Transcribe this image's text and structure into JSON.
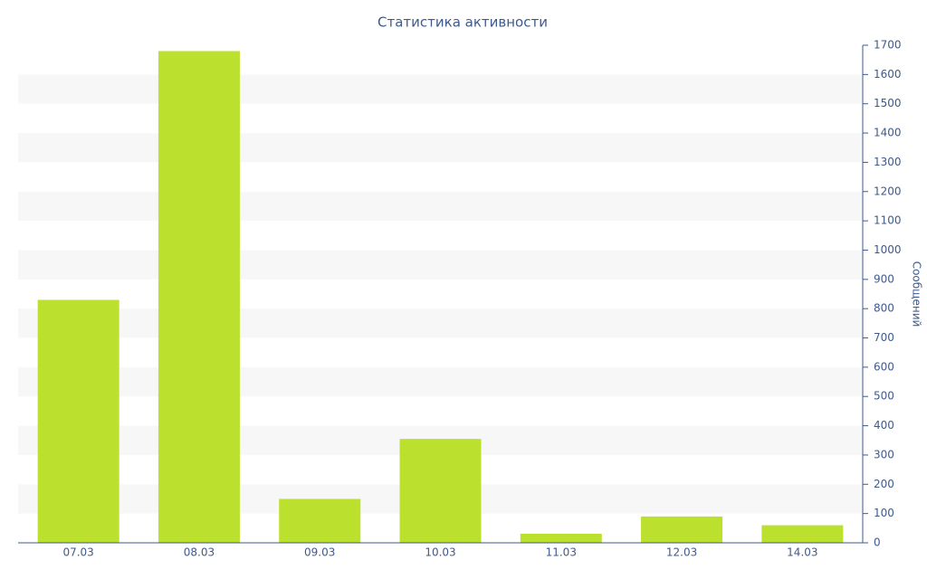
{
  "chart_data": {
    "type": "bar",
    "title": "Статистика активности",
    "y_label": "Сообщений",
    "categories": [
      "07.03",
      "08.03",
      "09.03",
      "10.03",
      "11.03",
      "12.03",
      "14.03"
    ],
    "values": [
      830,
      1680,
      150,
      355,
      31,
      90,
      60
    ],
    "color": "#bbe02e",
    "ylim": [
      0,
      1700
    ],
    "yticks": [
      0,
      100,
      200,
      300,
      400,
      500,
      600,
      700,
      800,
      900,
      1000,
      1100,
      1200,
      1300,
      1400,
      1500,
      1600,
      1700
    ],
    "grid": true
  }
}
